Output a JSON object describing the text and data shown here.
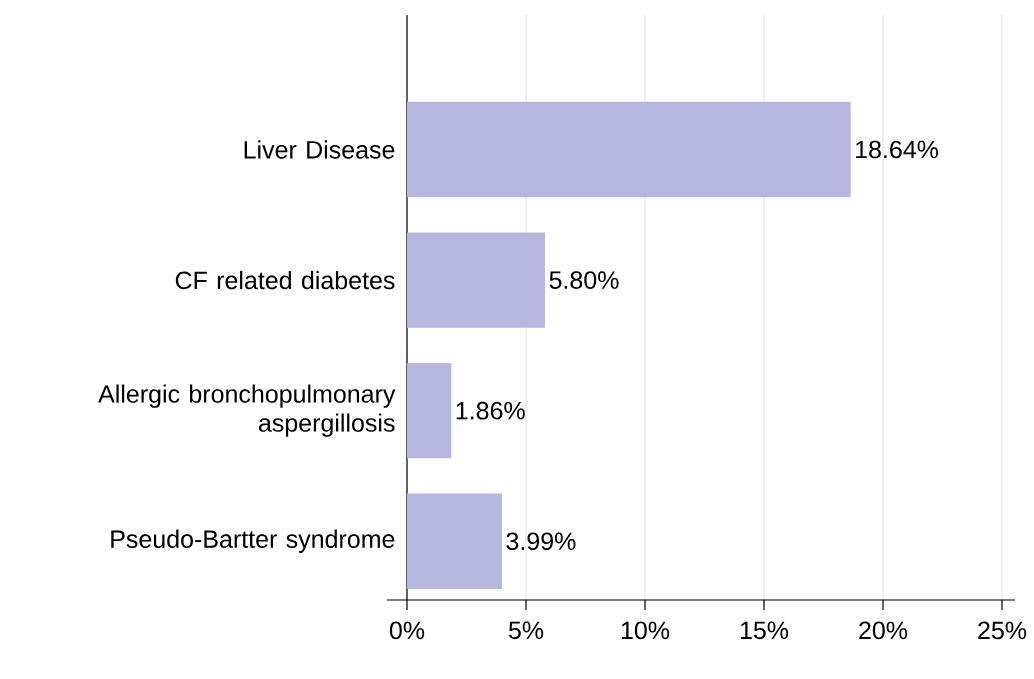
{
  "chart_data": {
    "type": "bar",
    "orientation": "horizontal",
    "categories": [
      "Liver Disease",
      "CF related diabetes",
      "Allergic bronchopulmonary aspergillosis",
      "Pseudo-Bartter syndrome"
    ],
    "values": [
      18.64,
      5.8,
      1.86,
      3.99
    ],
    "value_labels": [
      "18.64%",
      "5.80%",
      "1.86%",
      "3.99%"
    ],
    "color": "#b6b6df",
    "xlim": [
      0,
      25
    ],
    "xticks": [
      {
        "value": 0,
        "label": "0%"
      },
      {
        "value": 5,
        "label": "5%"
      },
      {
        "value": 10,
        "label": "10%"
      },
      {
        "value": 15,
        "label": "15%"
      },
      {
        "value": 20,
        "label": "20%"
      },
      {
        "value": 25,
        "label": "25%"
      }
    ],
    "grid": "x"
  }
}
